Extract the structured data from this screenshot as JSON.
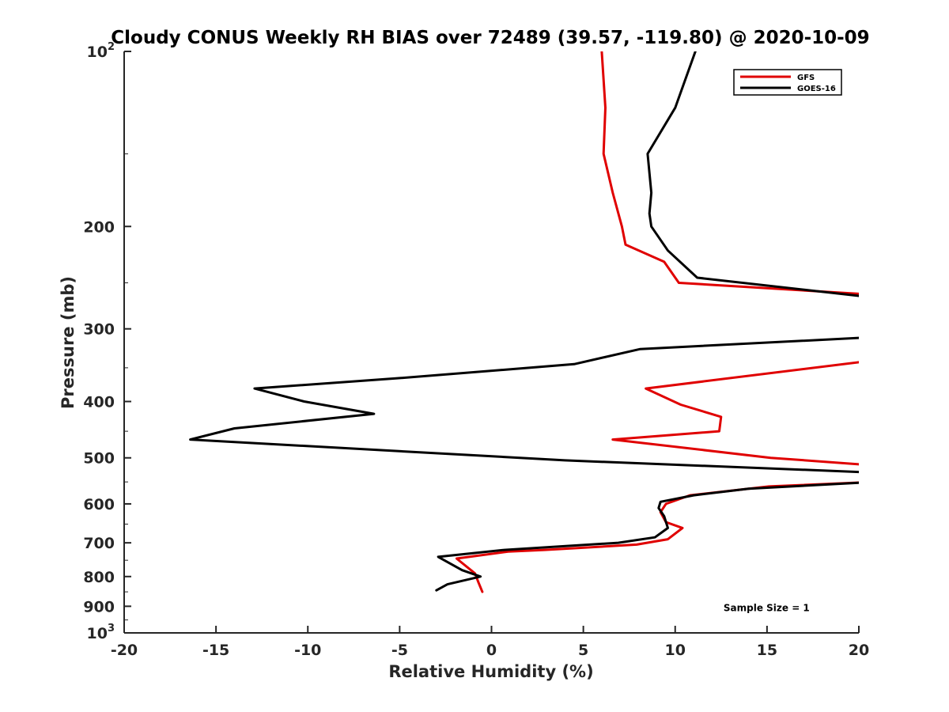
{
  "chart_data": {
    "type": "line",
    "title": "Cloudy CONUS Weekly RH BIAS over 72489 (39.57, -119.80) @ 2020-10-09",
    "xlabel": "Relative Humidity (%)",
    "ylabel": "Pressure (mb)",
    "xlim": [
      -20,
      20
    ],
    "ylim": [
      100,
      1000
    ],
    "y_scale": "log",
    "y_reversed": true,
    "grid": false,
    "legend_position": "top-right",
    "x_ticks": [
      "-20",
      "-15",
      "-10",
      "-5",
      "0",
      "5",
      "10",
      "15",
      "20"
    ],
    "x_tick_values": [
      -20,
      -15,
      -10,
      -5,
      0,
      5,
      10,
      15,
      20
    ],
    "y_ticks": [
      {
        "value": 100,
        "base": "10",
        "exp": "2"
      },
      {
        "value": 200,
        "base": "200",
        "exp": ""
      },
      {
        "value": 300,
        "base": "300",
        "exp": ""
      },
      {
        "value": 400,
        "base": "400",
        "exp": ""
      },
      {
        "value": 500,
        "base": "500",
        "exp": ""
      },
      {
        "value": 600,
        "base": "600",
        "exp": ""
      },
      {
        "value": 700,
        "base": "700",
        "exp": ""
      },
      {
        "value": 800,
        "base": "800",
        "exp": ""
      },
      {
        "value": 900,
        "base": "900",
        "exp": ""
      },
      {
        "value": 1000,
        "base": "10",
        "exp": "3"
      }
    ],
    "series": [
      {
        "name": "GFS",
        "color": "#e00000",
        "points": [
          [
            6.0,
            100
          ],
          [
            6.2,
            125
          ],
          [
            6.1,
            150
          ],
          [
            6.6,
            175
          ],
          [
            7.1,
            200
          ],
          [
            7.3,
            215
          ],
          [
            9.4,
            230
          ],
          [
            10.2,
            250
          ],
          [
            20.8,
            262
          ],
          [
            20.8,
            340
          ],
          [
            8.4,
            380
          ],
          [
            10.3,
            405
          ],
          [
            12.5,
            425
          ],
          [
            12.4,
            450
          ],
          [
            6.6,
            465
          ],
          [
            15.2,
            500
          ],
          [
            20.8,
            515
          ],
          [
            20.8,
            550
          ],
          [
            15.1,
            560
          ],
          [
            10.8,
            580
          ],
          [
            9.5,
            600
          ],
          [
            9.2,
            620
          ],
          [
            9.5,
            645
          ],
          [
            10.4,
            660
          ],
          [
            9.6,
            690
          ],
          [
            7.9,
            705
          ],
          [
            2.9,
            720
          ],
          [
            0.9,
            725
          ],
          [
            -1.9,
            745
          ],
          [
            -0.9,
            790
          ],
          [
            -0.7,
            820
          ],
          [
            -0.5,
            850
          ]
        ]
      },
      {
        "name": "GOES-16",
        "color": "#000000",
        "points": [
          [
            11.1,
            100
          ],
          [
            10.0,
            125
          ],
          [
            8.5,
            150
          ],
          [
            8.7,
            175
          ],
          [
            8.6,
            190
          ],
          [
            8.7,
            200
          ],
          [
            9.6,
            220
          ],
          [
            11.2,
            245
          ],
          [
            20.8,
            265
          ],
          [
            20.8,
            310
          ],
          [
            8.1,
            325
          ],
          [
            4.5,
            345
          ],
          [
            -5.2,
            365
          ],
          [
            -12.9,
            380
          ],
          [
            -10.2,
            400
          ],
          [
            -6.4,
            420
          ],
          [
            -14.0,
            445
          ],
          [
            -16.4,
            465
          ],
          [
            4.0,
            505
          ],
          [
            20.8,
            530
          ],
          [
            20.8,
            550
          ],
          [
            14.0,
            565
          ],
          [
            11.0,
            580
          ],
          [
            9.2,
            595
          ],
          [
            9.1,
            610
          ],
          [
            9.4,
            630
          ],
          [
            9.6,
            660
          ],
          [
            8.9,
            685
          ],
          [
            6.9,
            700
          ],
          [
            0.7,
            720
          ],
          [
            -2.9,
            740
          ],
          [
            -1.6,
            780
          ],
          [
            -0.6,
            800
          ],
          [
            -2.4,
            825
          ],
          [
            -3.0,
            845
          ]
        ]
      }
    ],
    "annotations": [
      {
        "text": "Sample Size = 1",
        "x": 15,
        "y": 900
      }
    ]
  }
}
